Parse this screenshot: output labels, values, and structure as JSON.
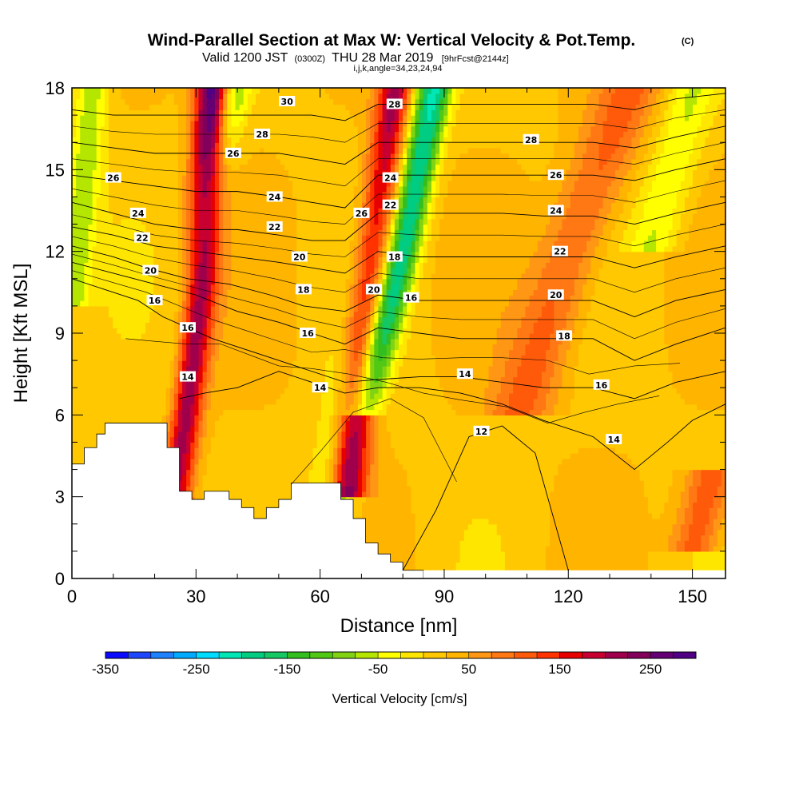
{
  "title": {
    "main": "Wind-Parallel Section at Max W: Vertical Velocity & Pot.Temp.",
    "copyright": "(C)",
    "valid_prefix": "Valid 1200 JST",
    "valid_utc": "(0300Z)",
    "valid_date": "THU 28 Mar 2019",
    "forecast": "[9hrFcst@2144z]",
    "indices": "i,j,k,angle=34,23,24,94"
  },
  "chart_data": {
    "type": "heatmap",
    "xlabel": "Distance [nm]",
    "ylabel": "Height [Kft MSL]",
    "xlim": [
      0,
      158
    ],
    "ylim": [
      0,
      18
    ],
    "x_ticks": [
      0,
      30,
      60,
      90,
      120,
      150
    ],
    "y_ticks": [
      0,
      3,
      6,
      9,
      12,
      15,
      18
    ],
    "colorbar": {
      "label": "Vertical Velocity [cm/s]",
      "tick_labels": [
        "-350",
        "-250",
        "-150",
        "-50",
        "50",
        "150",
        "250"
      ],
      "tick_values": [
        -350,
        -250,
        -150,
        -50,
        50,
        150,
        250
      ],
      "range": [
        -350,
        300
      ],
      "bin_size": 25,
      "colors": [
        "#0a0aff",
        "#1e46ff",
        "#1e82ff",
        "#00aaff",
        "#00dcff",
        "#00e6b4",
        "#00cc82",
        "#14c864",
        "#32be1e",
        "#50c814",
        "#82d214",
        "#b4e600",
        "#ffff00",
        "#ffe600",
        "#ffc800",
        "#ffb400",
        "#ff9614",
        "#ff7814",
        "#ff5a0a",
        "#ff3200",
        "#e60000",
        "#c80032",
        "#a0004b",
        "#82005a",
        "#640073",
        "#500082"
      ]
    },
    "fill_features": [
      {
        "kind": "updraft",
        "x": [
          [
            22,
            0.7
          ],
          [
            27,
            6
          ],
          [
            31,
            11
          ],
          [
            33,
            15
          ],
          [
            34,
            18
          ]
        ],
        "w": 290,
        "width_nm": 4
      },
      {
        "kind": "updraft",
        "x": [
          [
            66,
            3
          ],
          [
            70,
            9
          ],
          [
            74,
            13
          ],
          [
            77,
            16
          ],
          [
            79,
            18
          ]
        ],
        "w": 280,
        "width_nm": 4.5
      },
      {
        "kind": "downdraft",
        "x": [
          [
            23,
            3
          ],
          [
            27,
            8
          ],
          [
            33,
            14
          ],
          [
            39,
            18
          ]
        ],
        "w": -120,
        "width_nm": 4
      },
      {
        "kind": "downdraft",
        "x": [
          [
            62,
            2
          ],
          [
            68,
            8
          ],
          [
            76,
            14
          ],
          [
            82,
            18
          ]
        ],
        "w": -130,
        "width_nm": 5
      },
      {
        "kind": "downdraft",
        "x": [
          [
            70,
            6
          ],
          [
            80,
            12
          ],
          [
            88,
            18
          ]
        ],
        "w": -200,
        "width_nm": 4
      },
      {
        "kind": "downdraft",
        "x": [
          [
            0,
            10
          ],
          [
            5,
            18
          ]
        ],
        "w": -90,
        "width_nm": 4
      },
      {
        "kind": "downdraft",
        "x": [
          [
            140,
            12
          ],
          [
            150,
            18
          ]
        ],
        "w": -70,
        "width_nm": 6
      },
      {
        "kind": "updraft",
        "x": [
          [
            108,
            6
          ],
          [
            125,
            14
          ],
          [
            135,
            18
          ]
        ],
        "w": 90,
        "width_nm": 8
      },
      {
        "kind": "updraft",
        "x": [
          [
            150,
            1
          ],
          [
            155,
            4
          ]
        ],
        "w": 110,
        "width_nm": 6
      }
    ],
    "terrain_kft": [
      [
        0,
        4.2
      ],
      [
        3,
        4.2
      ],
      [
        3,
        4.8
      ],
      [
        6,
        4.8
      ],
      [
        6,
        5.3
      ],
      [
        8,
        5.3
      ],
      [
        8,
        5.7
      ],
      [
        23,
        5.7
      ],
      [
        23,
        4.8
      ],
      [
        26,
        4.8
      ],
      [
        26,
        3.2
      ],
      [
        29,
        3.2
      ],
      [
        29,
        2.9
      ],
      [
        32,
        2.9
      ],
      [
        32,
        3.2
      ],
      [
        38,
        3.2
      ],
      [
        38,
        2.9
      ],
      [
        41,
        2.9
      ],
      [
        41,
        2.6
      ],
      [
        44,
        2.6
      ],
      [
        44,
        2.2
      ],
      [
        47,
        2.2
      ],
      [
        47,
        2.6
      ],
      [
        50,
        2.6
      ],
      [
        50,
        2.9
      ],
      [
        53,
        2.9
      ],
      [
        53,
        3.5
      ],
      [
        65,
        3.5
      ],
      [
        65,
        2.9
      ],
      [
        68,
        2.9
      ],
      [
        68,
        2.2
      ],
      [
        71,
        2.2
      ],
      [
        71,
        1.3
      ],
      [
        74,
        1.3
      ],
      [
        74,
        0.9
      ],
      [
        77,
        0.9
      ],
      [
        77,
        0.6
      ],
      [
        80,
        0.6
      ],
      [
        80,
        0.3
      ],
      [
        85,
        0.3
      ]
    ],
    "isentropes": [
      {
        "label": "12",
        "pts": [
          [
            80,
            0.3
          ],
          [
            88,
            2.5
          ],
          [
            96,
            5.2
          ],
          [
            104,
            5.6
          ],
          [
            112,
            4.6
          ],
          [
            120,
            0.3
          ]
        ],
        "label_pos": [
          99,
          5.2
        ]
      },
      {
        "label": "14",
        "pts": [
          [
            26,
            6.6
          ],
          [
            32,
            6.8
          ],
          [
            40,
            7.0
          ],
          [
            50,
            7.6
          ],
          [
            58,
            7.2
          ],
          [
            66,
            6.8
          ],
          [
            74,
            7.0
          ],
          [
            84,
            7.0
          ],
          [
            94,
            6.8
          ],
          [
            104,
            6.4
          ],
          [
            114,
            5.8
          ],
          [
            126,
            5.2
          ],
          [
            136,
            4.0
          ],
          [
            144,
            5.0
          ],
          [
            150,
            5.8
          ],
          [
            158,
            6.4
          ]
        ],
        "label_pos": [
          131,
          5.1
        ]
      },
      {
        "label": "16",
        "pts": [
          [
            0,
            11.0
          ],
          [
            8,
            10.6
          ],
          [
            16,
            10.2
          ],
          [
            22,
            9.6
          ],
          [
            28,
            9.2
          ],
          [
            34,
            8.8
          ],
          [
            42,
            8.4
          ],
          [
            50,
            8.0
          ],
          [
            58,
            7.6
          ],
          [
            66,
            7.2
          ],
          [
            74,
            7.3
          ],
          [
            84,
            7.4
          ],
          [
            94,
            7.4
          ],
          [
            104,
            7.2
          ],
          [
            114,
            7.0
          ],
          [
            126,
            7.0
          ],
          [
            136,
            6.6
          ],
          [
            146,
            7.2
          ],
          [
            158,
            7.6
          ]
        ],
        "label_pos": [
          126,
          7.0
        ]
      },
      {
        "label": "18",
        "pts": [
          [
            0,
            11.6
          ],
          [
            10,
            11.2
          ],
          [
            20,
            10.8
          ],
          [
            30,
            10.4
          ],
          [
            40,
            9.8
          ],
          [
            50,
            9.4
          ],
          [
            58,
            9.0
          ],
          [
            66,
            8.6
          ],
          [
            74,
            9.2
          ],
          [
            84,
            9.0
          ],
          [
            94,
            8.8
          ],
          [
            104,
            8.8
          ],
          [
            114,
            8.8
          ],
          [
            126,
            8.8
          ],
          [
            136,
            8.0
          ],
          [
            146,
            8.6
          ],
          [
            158,
            9.2
          ]
        ],
        "label_pos": [
          119,
          8.8
        ]
      },
      {
        "label": "20",
        "pts": [
          [
            0,
            12.2
          ],
          [
            10,
            11.8
          ],
          [
            18,
            11.4
          ],
          [
            28,
            11.0
          ],
          [
            38,
            10.8
          ],
          [
            48,
            10.4
          ],
          [
            56,
            10.0
          ],
          [
            66,
            9.8
          ],
          [
            74,
            10.4
          ],
          [
            84,
            10.2
          ],
          [
            94,
            10.2
          ],
          [
            104,
            10.2
          ],
          [
            114,
            10.2
          ],
          [
            126,
            10.2
          ],
          [
            136,
            9.6
          ],
          [
            146,
            10.2
          ],
          [
            158,
            10.6
          ]
        ],
        "label_pos": [
          117,
          10.2
        ]
      },
      {
        "label": "22",
        "pts": [
          [
            0,
            12.9
          ],
          [
            10,
            12.6
          ],
          [
            20,
            12.2
          ],
          [
            30,
            12.0
          ],
          [
            40,
            11.8
          ],
          [
            50,
            11.6
          ],
          [
            58,
            11.4
          ],
          [
            66,
            11.2
          ],
          [
            74,
            12.0
          ],
          [
            84,
            11.8
          ],
          [
            94,
            11.8
          ],
          [
            104,
            11.8
          ],
          [
            114,
            11.8
          ],
          [
            126,
            11.8
          ],
          [
            136,
            11.4
          ],
          [
            146,
            11.8
          ],
          [
            158,
            12.2
          ]
        ],
        "label_pos": [
          118,
          11.8
        ]
      },
      {
        "label": "24",
        "pts": [
          [
            0,
            13.8
          ],
          [
            10,
            13.4
          ],
          [
            20,
            13.0
          ],
          [
            30,
            12.8
          ],
          [
            40,
            12.8
          ],
          [
            50,
            12.6
          ],
          [
            58,
            12.4
          ],
          [
            66,
            12.4
          ],
          [
            74,
            13.4
          ],
          [
            84,
            13.4
          ],
          [
            94,
            13.4
          ],
          [
            104,
            13.4
          ],
          [
            114,
            13.3
          ],
          [
            126,
            13.3
          ],
          [
            136,
            13.0
          ],
          [
            146,
            13.4
          ],
          [
            158,
            13.8
          ]
        ],
        "label_pos": [
          117,
          13.3
        ]
      },
      {
        "label": "26",
        "pts": [
          [
            0,
            14.8
          ],
          [
            10,
            14.6
          ],
          [
            20,
            14.4
          ],
          [
            30,
            14.2
          ],
          [
            40,
            14.2
          ],
          [
            50,
            14.0
          ],
          [
            58,
            13.8
          ],
          [
            66,
            13.6
          ],
          [
            74,
            14.8
          ],
          [
            84,
            14.8
          ],
          [
            94,
            14.8
          ],
          [
            104,
            14.8
          ],
          [
            114,
            14.8
          ],
          [
            126,
            14.8
          ],
          [
            136,
            14.6
          ],
          [
            146,
            15.0
          ],
          [
            158,
            15.4
          ]
        ],
        "label_pos": [
          117,
          14.8
        ]
      },
      {
        "label": "28",
        "pts": [
          [
            0,
            16.0
          ],
          [
            10,
            15.8
          ],
          [
            20,
            15.6
          ],
          [
            30,
            15.6
          ],
          [
            40,
            15.6
          ],
          [
            50,
            15.6
          ],
          [
            58,
            15.4
          ],
          [
            66,
            15.2
          ],
          [
            74,
            16.0
          ],
          [
            84,
            16.0
          ],
          [
            94,
            16.0
          ],
          [
            104,
            16.0
          ],
          [
            114,
            16.0
          ],
          [
            126,
            16.0
          ],
          [
            136,
            15.8
          ],
          [
            146,
            16.2
          ],
          [
            158,
            16.6
          ]
        ],
        "label_pos": [
          111,
          16.0
        ]
      },
      {
        "label": "30",
        "pts": [
          [
            0,
            17.2
          ],
          [
            10,
            17.0
          ],
          [
            20,
            17.0
          ],
          [
            30,
            17.0
          ],
          [
            40,
            17.0
          ],
          [
            50,
            17.0
          ],
          [
            58,
            17.0
          ],
          [
            66,
            16.8
          ],
          [
            74,
            17.4
          ],
          [
            84,
            17.4
          ],
          [
            94,
            17.4
          ],
          [
            104,
            17.4
          ],
          [
            114,
            17.4
          ],
          [
            126,
            17.4
          ],
          [
            136,
            17.2
          ],
          [
            146,
            17.6
          ],
          [
            158,
            17.8
          ]
        ],
        "label_pos": [
          52,
          17.0
        ]
      }
    ],
    "isentrope_labels": [
      {
        "text": "26",
        "x": 10,
        "y": 14.7
      },
      {
        "text": "24",
        "x": 16,
        "y": 13.4
      },
      {
        "text": "22",
        "x": 17,
        "y": 12.5
      },
      {
        "text": "20",
        "x": 19,
        "y": 11.3
      },
      {
        "text": "16",
        "x": 20,
        "y": 10.2
      },
      {
        "text": "16",
        "x": 28,
        "y": 9.2
      },
      {
        "text": "14",
        "x": 28,
        "y": 7.4
      },
      {
        "text": "26",
        "x": 39,
        "y": 15.6
      },
      {
        "text": "28",
        "x": 46,
        "y": 16.3
      },
      {
        "text": "30",
        "x": 52,
        "y": 17.5
      },
      {
        "text": "24",
        "x": 49,
        "y": 14.0
      },
      {
        "text": "22",
        "x": 49,
        "y": 12.9
      },
      {
        "text": "20",
        "x": 55,
        "y": 11.8
      },
      {
        "text": "18",
        "x": 56,
        "y": 10.6
      },
      {
        "text": "16",
        "x": 57,
        "y": 9.0
      },
      {
        "text": "14",
        "x": 60,
        "y": 7.0
      },
      {
        "text": "28",
        "x": 78,
        "y": 17.4
      },
      {
        "text": "24",
        "x": 77,
        "y": 14.7
      },
      {
        "text": "26",
        "x": 70,
        "y": 13.4
      },
      {
        "text": "22",
        "x": 77,
        "y": 13.7
      },
      {
        "text": "18",
        "x": 78,
        "y": 11.8
      },
      {
        "text": "20",
        "x": 73,
        "y": 10.6
      },
      {
        "text": "16",
        "x": 82,
        "y": 10.3
      },
      {
        "text": "14",
        "x": 95,
        "y": 7.5
      },
      {
        "text": "12",
        "x": 99,
        "y": 5.4
      },
      {
        "text": "28",
        "x": 111,
        "y": 16.1
      },
      {
        "text": "26",
        "x": 117,
        "y": 14.8
      },
      {
        "text": "24",
        "x": 117,
        "y": 13.5
      },
      {
        "text": "22",
        "x": 118,
        "y": 12.0
      },
      {
        "text": "20",
        "x": 117,
        "y": 10.4
      },
      {
        "text": "18",
        "x": 119,
        "y": 8.9
      },
      {
        "text": "16",
        "x": 128,
        "y": 7.1
      },
      {
        "text": "14",
        "x": 131,
        "y": 5.1
      }
    ]
  }
}
